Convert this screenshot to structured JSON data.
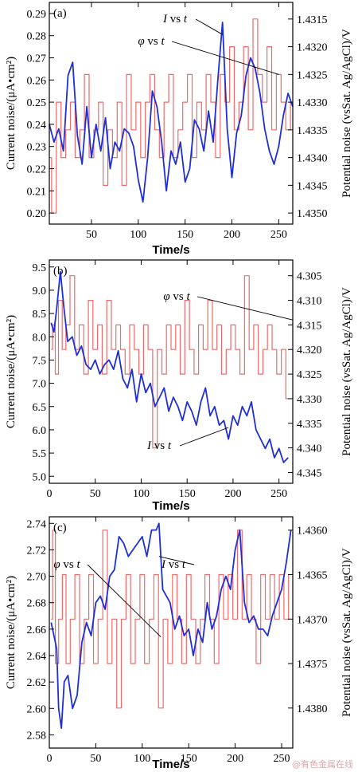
{
  "watermark": "@有色金属在线",
  "chart_data": [
    {
      "type": "line",
      "panel_label": "(a)",
      "xlabel": "Time/s",
      "ylabel_left": "Current noise/(μA•cm²)",
      "ylabel_right": "Potential noise (vsSat. Ag/AgCl)/V",
      "xlim": [
        5,
        265
      ],
      "ylim_left": [
        0.195,
        0.295
      ],
      "ylim_right": [
        1.4352,
        1.4312
      ],
      "right_axis_inverted": true,
      "x_ticks": [
        50,
        100,
        150,
        200,
        250
      ],
      "y_ticks_left": [
        0.2,
        0.21,
        0.22,
        0.23,
        0.24,
        0.25,
        0.26,
        0.27,
        0.28,
        0.29
      ],
      "y_tick_labels_left": [
        "0.20",
        "0.21",
        "0.22",
        "0.23",
        "0.24",
        "0.25",
        "0.26",
        "0.27",
        "0.28",
        "0.29"
      ],
      "y_ticks_right": [
        1.435,
        1.4345,
        1.434,
        1.4335,
        1.433,
        1.4325,
        1.432,
        1.4315
      ],
      "y_tick_labels_right": [
        "1.4350",
        "1.4345",
        "1.4340",
        "1.4335",
        "1.4330",
        "1.4325",
        "1.4320",
        "1.4315"
      ],
      "annotations": [
        {
          "var": "I",
          "text": " vs ",
          "var2": "t",
          "target_series": "current"
        },
        {
          "var": "φ",
          "text": " vs ",
          "var2": "t",
          "target_series": "potential"
        }
      ],
      "series": [
        {
          "key": "current",
          "axis": "left",
          "color": "#1f2fd6",
          "x": [
            5,
            10,
            15,
            20,
            25,
            30,
            35,
            40,
            45,
            50,
            55,
            60,
            65,
            70,
            75,
            80,
            85,
            90,
            95,
            100,
            105,
            110,
            115,
            120,
            125,
            130,
            135,
            140,
            145,
            150,
            155,
            160,
            165,
            170,
            175,
            180,
            185,
            190,
            195,
            200,
            205,
            210,
            215,
            220,
            225,
            230,
            235,
            240,
            245,
            250,
            255,
            260,
            265
          ],
          "y": [
            0.24,
            0.232,
            0.238,
            0.228,
            0.262,
            0.268,
            0.235,
            0.222,
            0.248,
            0.225,
            0.24,
            0.228,
            0.243,
            0.22,
            0.232,
            0.228,
            0.238,
            0.236,
            0.23,
            0.215,
            0.205,
            0.225,
            0.255,
            0.248,
            0.232,
            0.21,
            0.228,
            0.222,
            0.232,
            0.214,
            0.22,
            0.242,
            0.238,
            0.228,
            0.246,
            0.232,
            0.26,
            0.286,
            0.238,
            0.216,
            0.236,
            0.244,
            0.262,
            0.27,
            0.265,
            0.254,
            0.238,
            0.228,
            0.222,
            0.23,
            0.244,
            0.254,
            0.248
          ]
        },
        {
          "key": "potential",
          "axis": "right",
          "color": "#ef6a6a",
          "x": [
            5,
            10,
            15,
            20,
            25,
            30,
            35,
            40,
            45,
            50,
            55,
            60,
            65,
            70,
            75,
            80,
            85,
            90,
            95,
            100,
            105,
            110,
            115,
            120,
            125,
            130,
            135,
            140,
            145,
            150,
            155,
            160,
            165,
            170,
            175,
            180,
            185,
            190,
            195,
            200,
            205,
            210,
            215,
            220,
            225,
            230,
            235,
            240,
            245,
            250,
            255,
            260,
            265
          ],
          "y": [
            1.434,
            1.435,
            1.433,
            1.434,
            1.4335,
            1.433,
            1.434,
            1.4335,
            1.4325,
            1.434,
            1.4335,
            1.433,
            1.4345,
            1.4335,
            1.434,
            1.433,
            1.4345,
            1.4325,
            1.4335,
            1.433,
            1.434,
            1.433,
            1.4325,
            1.4335,
            1.434,
            1.433,
            1.4325,
            1.434,
            1.4335,
            1.433,
            1.4325,
            1.434,
            1.433,
            1.4335,
            1.4325,
            1.433,
            1.434,
            1.4325,
            1.433,
            1.432,
            1.4335,
            1.433,
            1.432,
            1.4335,
            1.4315,
            1.4325,
            1.433,
            1.432,
            1.4335,
            1.4325,
            1.433,
            1.4335,
            1.433
          ]
        }
      ]
    },
    {
      "type": "line",
      "panel_label": "(b)",
      "xlabel": "Time/s",
      "ylabel_left": "Current noise/(μA•cm²)",
      "ylabel_right": "Potential noise (vsSat. Ag/AgCl)/V",
      "xlim": [
        0,
        265
      ],
      "ylim_left": [
        4.85,
        9.65
      ],
      "ylim_right": [
        4.3472,
        4.3018
      ],
      "right_axis_inverted": true,
      "x_ticks": [
        0,
        50,
        100,
        150,
        200,
        250
      ],
      "y_ticks_left": [
        5.0,
        5.5,
        6.0,
        6.5,
        7.0,
        7.5,
        8.0,
        8.5,
        9.0,
        9.5
      ],
      "y_tick_labels_left": [
        "5.0",
        "5.5",
        "6.0",
        "6.5",
        "7.0",
        "7.5",
        "8.0",
        "8.5",
        "9.0",
        "9.5"
      ],
      "y_ticks_right": [
        4.345,
        4.34,
        4.335,
        4.33,
        4.325,
        4.32,
        4.315,
        4.31,
        4.305
      ],
      "y_tick_labels_right": [
        "4.345",
        "4.340",
        "4.335",
        "4.330",
        "4.325",
        "4.320",
        "4.315",
        "4.310",
        "4.305"
      ],
      "annotations": [
        {
          "var": "φ",
          "text": " vs ",
          "var2": "t",
          "target_series": "potential"
        },
        {
          "var": "I",
          "text": " vs ",
          "var2": "t",
          "target_series": "current"
        }
      ],
      "series": [
        {
          "key": "current",
          "axis": "left",
          "color": "#1f2fd6",
          "x": [
            2,
            5,
            8,
            12,
            16,
            20,
            25,
            30,
            35,
            40,
            45,
            50,
            55,
            60,
            65,
            70,
            75,
            80,
            85,
            90,
            95,
            100,
            105,
            110,
            115,
            120,
            125,
            130,
            135,
            140,
            145,
            150,
            155,
            160,
            165,
            170,
            175,
            180,
            185,
            190,
            195,
            200,
            205,
            210,
            215,
            220,
            225,
            230,
            235,
            240,
            245,
            250,
            255,
            260
          ],
          "y": [
            8.3,
            8.1,
            8.6,
            9.4,
            8.6,
            7.9,
            8.0,
            7.6,
            7.8,
            7.4,
            7.3,
            7.5,
            7.2,
            7.4,
            7.5,
            7.3,
            7.7,
            7.1,
            6.9,
            7.3,
            6.6,
            7.2,
            6.8,
            7.0,
            6.5,
            6.7,
            6.9,
            6.4,
            6.7,
            6.5,
            6.2,
            6.6,
            6.4,
            6.1,
            6.6,
            6.9,
            6.3,
            6.5,
            6.1,
            6.2,
            5.8,
            6.3,
            6.1,
            6.5,
            6.3,
            6.6,
            6.0,
            5.8,
            5.6,
            5.8,
            5.4,
            5.6,
            5.3,
            5.4
          ]
        },
        {
          "key": "potential",
          "axis": "right",
          "color": "#ef6a6a",
          "x": [
            2,
            5,
            8,
            12,
            16,
            20,
            25,
            30,
            35,
            40,
            45,
            50,
            55,
            60,
            65,
            70,
            75,
            80,
            85,
            90,
            95,
            100,
            105,
            110,
            115,
            120,
            125,
            130,
            135,
            140,
            145,
            150,
            155,
            160,
            165,
            170,
            175,
            180,
            185,
            190,
            195,
            200,
            205,
            210,
            215,
            220,
            225,
            230,
            235,
            240,
            245,
            250,
            255,
            260
          ],
          "y": [
            4.32,
            4.315,
            4.325,
            4.31,
            4.32,
            4.315,
            4.305,
            4.32,
            4.315,
            4.325,
            4.31,
            4.32,
            4.315,
            4.325,
            4.31,
            4.32,
            4.315,
            4.32,
            4.325,
            4.315,
            4.32,
            4.325,
            4.315,
            4.32,
            4.34,
            4.32,
            4.325,
            4.315,
            4.32,
            4.315,
            4.325,
            4.31,
            4.32,
            4.325,
            4.315,
            4.32,
            4.31,
            4.32,
            4.315,
            4.325,
            4.32,
            4.315,
            4.32,
            4.325,
            4.305,
            4.32,
            4.315,
            4.325,
            4.32,
            4.315,
            4.32,
            4.325,
            4.32,
            4.33
          ]
        }
      ]
    },
    {
      "type": "line",
      "panel_label": "(c)",
      "xlabel": "Time/s",
      "ylabel_left": "Current noise/(μA•cm²)",
      "ylabel_right": "Potential noise (vsSat. Ag/AgCl)/V",
      "xlim": [
        0,
        262
      ],
      "ylim_left": [
        2.57,
        2.745
      ],
      "ylim_right": [
        1.43845,
        1.43585
      ],
      "right_axis_inverted": true,
      "x_ticks": [
        0,
        50,
        100,
        150,
        200,
        250
      ],
      "y_ticks_left": [
        2.58,
        2.6,
        2.62,
        2.64,
        2.66,
        2.68,
        2.7,
        2.72,
        2.74
      ],
      "y_tick_labels_left": [
        "2.58",
        "2.60",
        "2.62",
        "2.64",
        "2.66",
        "2.68",
        "2.70",
        "2.72",
        "2.74"
      ],
      "y_ticks_right": [
        1.438,
        1.4375,
        1.437,
        1.4365,
        1.436
      ],
      "y_tick_labels_right": [
        "1.4380",
        "1.4375",
        "1.4370",
        "1.4365",
        "1.4360"
      ],
      "annotations": [
        {
          "var": "φ",
          "text": " vs ",
          "var2": "t",
          "target_series": "potential"
        },
        {
          "var": "I",
          "text": " vs ",
          "var2": "t",
          "target_series": "current"
        }
      ],
      "series": [
        {
          "key": "current",
          "axis": "left",
          "color": "#1f2fd6",
          "x": [
            2,
            5,
            8,
            10,
            13,
            16,
            20,
            25,
            30,
            35,
            40,
            45,
            50,
            55,
            60,
            65,
            70,
            75,
            80,
            85,
            90,
            95,
            100,
            105,
            110,
            115,
            118,
            122,
            126,
            130,
            135,
            140,
            145,
            150,
            155,
            160,
            165,
            170,
            175,
            180,
            185,
            190,
            195,
            200,
            205,
            210,
            215,
            220,
            225,
            230,
            235,
            240,
            245,
            250,
            255,
            260
          ],
          "y": [
            2.665,
            2.655,
            2.645,
            2.6,
            2.585,
            2.62,
            2.625,
            2.6,
            2.61,
            2.65,
            2.665,
            2.655,
            2.68,
            2.685,
            2.675,
            2.7,
            2.705,
            2.73,
            2.725,
            2.715,
            2.72,
            2.725,
            2.73,
            2.715,
            2.735,
            2.735,
            2.74,
            2.69,
            2.685,
            2.68,
            2.66,
            2.67,
            2.655,
            2.66,
            2.64,
            2.66,
            2.65,
            2.68,
            2.66,
            2.67,
            2.69,
            2.7,
            2.69,
            2.72,
            2.735,
            2.68,
            2.665,
            2.67,
            2.66,
            2.66,
            2.655,
            2.67,
            2.68,
            2.69,
            2.71,
            2.735
          ]
        },
        {
          "key": "potential",
          "axis": "right",
          "color": "#ef6a6a",
          "x": [
            2,
            5,
            8,
            12,
            16,
            20,
            25,
            30,
            35,
            40,
            45,
            50,
            55,
            60,
            65,
            70,
            75,
            80,
            85,
            90,
            95,
            100,
            105,
            110,
            115,
            120,
            125,
            130,
            135,
            140,
            145,
            150,
            155,
            160,
            165,
            170,
            175,
            180,
            185,
            190,
            195,
            200,
            205,
            210,
            215,
            220,
            225,
            230,
            235,
            240,
            245,
            250,
            255,
            260
          ],
          "y": [
            1.437,
            1.436,
            1.4375,
            1.437,
            1.4365,
            1.4375,
            1.437,
            1.4365,
            1.4375,
            1.437,
            1.4365,
            1.4375,
            1.437,
            1.436,
            1.4375,
            1.437,
            1.438,
            1.437,
            1.4365,
            1.4375,
            1.437,
            1.4365,
            1.4375,
            1.437,
            1.4365,
            1.438,
            1.437,
            1.4375,
            1.4365,
            1.437,
            1.4375,
            1.4365,
            1.437,
            1.4375,
            1.437,
            1.4365,
            1.437,
            1.4375,
            1.4365,
            1.437,
            1.4365,
            1.437,
            1.436,
            1.437,
            1.4365,
            1.437,
            1.4375,
            1.4365,
            1.437,
            1.4365,
            1.437,
            1.4365,
            1.437,
            1.4365
          ]
        }
      ]
    }
  ]
}
